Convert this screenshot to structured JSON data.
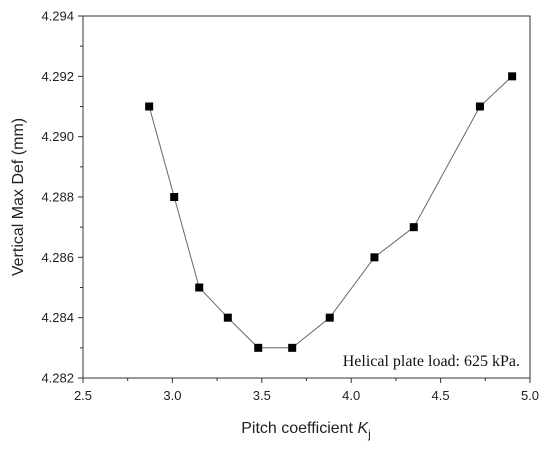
{
  "chart_data": {
    "type": "line",
    "title": "",
    "xlabel_main": "Pitch coefficient ",
    "xlabel_symbol": "K",
    "xlabel_subscript": "j",
    "ylabel": "Vertical Max Def (mm)",
    "xlim": [
      2.5,
      5.0
    ],
    "ylim": [
      4.282,
      4.294
    ],
    "xticks": [
      "2.5",
      "3.0",
      "3.5",
      "4.0",
      "4.5",
      "5.0"
    ],
    "yticks": [
      "4.282",
      "4.284",
      "4.286",
      "4.288",
      "4.290",
      "4.292",
      "4.294"
    ],
    "grid": false,
    "legend": "none",
    "annotation": "Helical plate load: 625 kPa.",
    "marker": "square",
    "line_color": "#666666",
    "marker_color": "#000000",
    "series": [
      {
        "x": [
          2.87,
          3.01,
          3.15,
          3.31,
          3.48,
          3.67,
          3.88,
          4.13,
          4.35,
          4.72,
          4.9
        ],
        "y": [
          4.291,
          4.288,
          4.285,
          4.284,
          4.283,
          4.283,
          4.284,
          4.286,
          4.287,
          4.291,
          4.292
        ]
      }
    ]
  }
}
